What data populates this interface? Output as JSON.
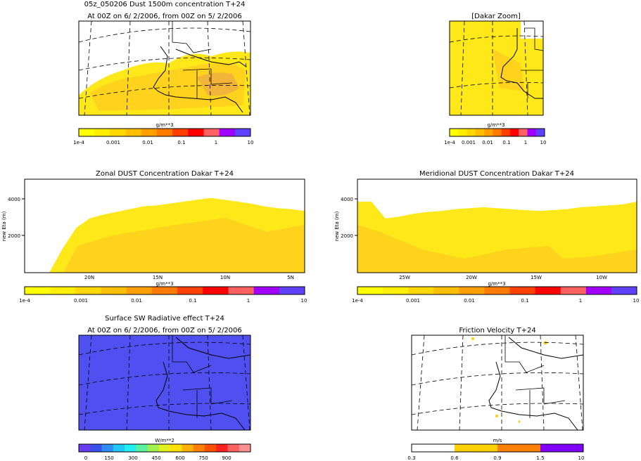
{
  "colors": {
    "dust_yellow": "#ffff00",
    "dust_light": "#ffe81a",
    "dust_mid": "#ffd21e",
    "dust_orange": "#f2b43a",
    "sw_blue": "#5050f0"
  },
  "map_dust": {
    "title": "05z_050206 Dust 1500m concentration T+24",
    "subtitle": "At 00Z on 6/ 2/2006, from 00Z on 5/ 2/2006",
    "unit": "g/m**3",
    "ticks": [
      "1e-4",
      "0.001",
      "0.01",
      "0.1",
      "1",
      "10"
    ]
  },
  "map_dakar": {
    "title": "[Dakar Zoom]",
    "unit": "g/m**3",
    "ticks": [
      "1e-4",
      "0.001",
      "0.01",
      "0.1",
      "1",
      "10"
    ]
  },
  "dust_scale_colors": [
    "#ffff00",
    "#ffee00",
    "#ffd800",
    "#ffbf00",
    "#ffa000",
    "#ff7a00",
    "#ff4000",
    "#ff0000",
    "#ff6060",
    "#a000ff",
    "#6040ff"
  ],
  "zonal": {
    "title": "Zonal DUST Concentration Dakar T+24",
    "ylabel": "new Eta (m)",
    "yticks": [
      "4000",
      "2000"
    ],
    "xticks": [
      "20N",
      "15N",
      "10N",
      "5N"
    ],
    "unit": "g/m**3",
    "ticks": [
      "1e-4",
      "0.001",
      "0.01",
      "0.1",
      "1",
      "10"
    ]
  },
  "meridional": {
    "title": "Meridional DUST Concentration Dakar T+24",
    "ylabel": "new Eta (m)",
    "yticks": [
      "4000",
      "2000"
    ],
    "xticks": [
      "25W",
      "20W",
      "15W",
      "10W"
    ],
    "unit": "g/m**3",
    "ticks": [
      "1e-4",
      "0.001",
      "0.01",
      "0.1",
      "1",
      "10"
    ]
  },
  "map_sw": {
    "title": "Surface SW Radiative effect T+24",
    "subtitle": "At 00Z on 6/ 2/2006, from 00Z on 5/ 2/2006",
    "unit": "W/m**2",
    "ticks": [
      "0",
      "150",
      "300",
      "450",
      "600",
      "750",
      "900"
    ],
    "scale_colors": [
      "#6a3df0",
      "#3a50f0",
      "#2f8cf5",
      "#22c8f5",
      "#20f0f0",
      "#5af0a0",
      "#a0f050",
      "#e0f020",
      "#ffe000",
      "#ffb000",
      "#ff8000",
      "#ff5000",
      "#ff2020",
      "#ff6060",
      "#ff9090"
    ]
  },
  "map_ustar": {
    "title": "Friction Velocity T+24",
    "unit": "m/s",
    "ticks": [
      "0.3",
      "0.6",
      "0.9",
      "1.5",
      "10"
    ],
    "scale_colors": [
      "#ffffff",
      "#ffd000",
      "#ff8000",
      "#8000ff"
    ]
  },
  "chart_data": [
    {
      "type": "heatmap",
      "title": "05z_050206 Dust 1500m concentration T+24",
      "subtitle": "At 00Z on 6/ 2/2006, from 00Z on 5/ 2/2006",
      "unit": "g/m**3",
      "colorbar_ticks": [
        "1e-4",
        "0.001",
        "0.01",
        "0.1",
        "1",
        "10"
      ]
    },
    {
      "type": "heatmap",
      "title": "[Dakar Zoom]",
      "unit": "g/m**3",
      "colorbar_ticks": [
        "1e-4",
        "0.001",
        "0.01",
        "0.1",
        "1",
        "10"
      ]
    },
    {
      "type": "area",
      "title": "Zonal DUST Concentration Dakar T+24",
      "ylabel": "new Eta (m)",
      "ylim": [
        0,
        5000
      ],
      "xticks": [
        "20N",
        "15N",
        "10N",
        "5N"
      ],
      "x_lat": [
        23,
        22,
        21,
        20,
        19,
        18,
        17,
        16,
        15,
        14,
        13,
        12,
        11,
        10,
        9,
        8,
        7,
        6,
        5,
        4
      ],
      "dust_top_m": [
        0,
        1300,
        2400,
        2900,
        3100,
        3250,
        3400,
        3550,
        3600,
        3700,
        3800,
        3900,
        4000,
        3900,
        3800,
        3700,
        3550,
        3450,
        3400,
        3300
      ],
      "unit": "g/m**3",
      "colorbar_ticks": [
        "1e-4",
        "0.001",
        "0.01",
        "0.1",
        "1",
        "10"
      ]
    },
    {
      "type": "area",
      "title": "Meridional DUST Concentration Dakar T+24",
      "ylabel": "new Eta (m)",
      "ylim": [
        0,
        5000
      ],
      "xticks": [
        "25W",
        "20W",
        "15W",
        "10W"
      ],
      "x_lon": [
        -28,
        -27,
        -26,
        -25,
        -24,
        -23,
        -22,
        -21,
        -20,
        -19,
        -18,
        -17,
        -16,
        -15,
        -14,
        -13,
        -12,
        -11,
        -10,
        -9,
        -8
      ],
      "dust_top_m": [
        3800,
        3800,
        2900,
        3000,
        3150,
        3250,
        3300,
        3400,
        3450,
        3500,
        3450,
        3400,
        3350,
        3300,
        3350,
        3400,
        3500,
        3550,
        3600,
        3650,
        3800
      ],
      "unit": "g/m**3",
      "colorbar_ticks": [
        "1e-4",
        "0.001",
        "0.01",
        "0.1",
        "1",
        "10"
      ]
    },
    {
      "type": "heatmap",
      "title": "Surface SW Radiative effect T+24",
      "subtitle": "At 00Z on 6/ 2/2006, from 00Z on 5/ 2/2006",
      "unit": "W/m**2",
      "colorbar_ticks": [
        "0",
        "150",
        "300",
        "450",
        "600",
        "750",
        "900"
      ]
    },
    {
      "type": "heatmap",
      "title": "Friction Velocity T+24",
      "unit": "m/s",
      "colorbar_ticks": [
        "0.3",
        "0.6",
        "0.9",
        "1.5",
        "10"
      ]
    }
  ]
}
